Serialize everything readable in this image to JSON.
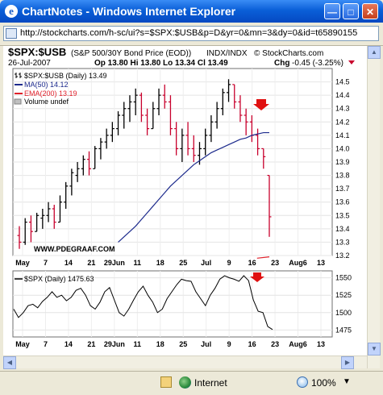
{
  "window": {
    "title": "ChartNotes - Windows Internet Explorer",
    "icon": "ie-page-icon",
    "buttons": {
      "minimize": "minimize-icon",
      "maximize": "maximize-icon",
      "close": "close-icon"
    }
  },
  "address": {
    "url": "http://stockcharts.com/h-sc/ui?s=$SPX:$USB&p=D&yr=0&mn=3&dy=0&id=t65890155"
  },
  "chart_header": {
    "symbol": "$SPX:$USB",
    "description": "(S&P 500/30Y Bond Price (EOD))",
    "exchange": "INDX/INDX",
    "copyright": "© StockCharts.com",
    "date": "26-Jul-2007",
    "ohlc_text": "Op 13.80  Hi 13.80  Lo 13.34  Cl 13.49",
    "change_label": "Chg",
    "change_value": "-0.45 (-3.25%)"
  },
  "legend": {
    "series_label": "$SPX:$USB (Daily) 13.49",
    "ma_label": "MA(50) 14.12",
    "ema_label": "EMA(200) 13.19",
    "volume_label": "Volume undef"
  },
  "watermark": "WWW.PDEGRAAF.COM",
  "lower_panel": {
    "label": "$SPX (Daily) 1475.63"
  },
  "status": {
    "zone": "Internet",
    "zoom": "100%"
  },
  "colors": {
    "up_bar": "#000000",
    "down_bar": "#c8002c",
    "ma50": "#1c2a8c",
    "ema200": "#e0202a",
    "arrow": "#e01010"
  },
  "chart_data": [
    {
      "type": "ohlc",
      "title": "$SPX:$USB",
      "x_tick_labels": [
        "May",
        "7",
        "14",
        "21",
        "29Jun",
        "11",
        "18",
        "25",
        "Jul",
        "9",
        "16",
        "23",
        "Aug6",
        "13"
      ],
      "ylim": [
        13.2,
        14.6
      ],
      "yticks": [
        13.2,
        13.3,
        13.4,
        13.5,
        13.6,
        13.7,
        13.8,
        13.9,
        14.0,
        14.1,
        14.2,
        14.3,
        14.4,
        14.5
      ],
      "bars": [
        {
          "h": 13.42,
          "l": 13.25,
          "o": 13.35,
          "c": 13.3
        },
        {
          "h": 13.48,
          "l": 13.28,
          "o": 13.3,
          "c": 13.45
        },
        {
          "h": 13.5,
          "l": 13.3,
          "o": 13.45,
          "c": 13.38
        },
        {
          "h": 13.52,
          "l": 13.38,
          "o": 13.38,
          "c": 13.5
        },
        {
          "h": 13.55,
          "l": 13.4,
          "o": 13.48,
          "c": 13.5
        },
        {
          "h": 13.6,
          "l": 13.45,
          "o": 13.5,
          "c": 13.55
        },
        {
          "h": 13.58,
          "l": 13.4,
          "o": 13.55,
          "c": 13.45
        },
        {
          "h": 13.65,
          "l": 13.45,
          "o": 13.45,
          "c": 13.6
        },
        {
          "h": 13.75,
          "l": 13.55,
          "o": 13.6,
          "c": 13.72
        },
        {
          "h": 13.85,
          "l": 13.65,
          "o": 13.72,
          "c": 13.82
        },
        {
          "h": 13.9,
          "l": 13.75,
          "o": 13.8,
          "c": 13.85
        },
        {
          "h": 13.95,
          "l": 13.8,
          "o": 13.85,
          "c": 13.92
        },
        {
          "h": 13.98,
          "l": 13.8,
          "o": 13.92,
          "c": 13.85
        },
        {
          "h": 14.02,
          "l": 13.85,
          "o": 13.85,
          "c": 14.0
        },
        {
          "h": 14.08,
          "l": 13.92,
          "o": 14.0,
          "c": 14.05
        },
        {
          "h": 14.15,
          "l": 14.0,
          "o": 14.05,
          "c": 14.1
        },
        {
          "h": 14.2,
          "l": 14.05,
          "o": 14.1,
          "c": 14.15
        },
        {
          "h": 14.28,
          "l": 14.1,
          "o": 14.15,
          "c": 14.25
        },
        {
          "h": 14.35,
          "l": 14.15,
          "o": 14.25,
          "c": 14.3
        },
        {
          "h": 14.4,
          "l": 14.2,
          "o": 14.3,
          "c": 14.35
        },
        {
          "h": 14.45,
          "l": 14.25,
          "o": 14.35,
          "c": 14.4
        },
        {
          "h": 14.42,
          "l": 14.2,
          "o": 14.4,
          "c": 14.25
        },
        {
          "h": 14.3,
          "l": 14.1,
          "o": 14.25,
          "c": 14.15
        },
        {
          "h": 14.35,
          "l": 14.15,
          "o": 14.15,
          "c": 14.3
        },
        {
          "h": 14.45,
          "l": 14.25,
          "o": 14.3,
          "c": 14.4
        },
        {
          "h": 14.48,
          "l": 14.3,
          "o": 14.4,
          "c": 14.35
        },
        {
          "h": 14.4,
          "l": 14.1,
          "o": 14.35,
          "c": 14.15
        },
        {
          "h": 14.2,
          "l": 13.95,
          "o": 14.15,
          "c": 14.0
        },
        {
          "h": 14.15,
          "l": 13.9,
          "o": 14.0,
          "c": 14.1
        },
        {
          "h": 14.2,
          "l": 13.95,
          "o": 14.1,
          "c": 14.0
        },
        {
          "h": 14.1,
          "l": 13.9,
          "o": 14.0,
          "c": 13.95
        },
        {
          "h": 14.05,
          "l": 13.88,
          "o": 13.95,
          "c": 14.0
        },
        {
          "h": 14.15,
          "l": 13.95,
          "o": 14.0,
          "c": 14.1
        },
        {
          "h": 14.25,
          "l": 14.05,
          "o": 14.1,
          "c": 14.2
        },
        {
          "h": 14.35,
          "l": 14.15,
          "o": 14.2,
          "c": 14.3
        },
        {
          "h": 14.45,
          "l": 14.25,
          "o": 14.3,
          "c": 14.42
        },
        {
          "h": 14.52,
          "l": 14.35,
          "o": 14.42,
          "c": 14.48
        },
        {
          "h": 14.48,
          "l": 14.3,
          "o": 14.48,
          "c": 14.35
        },
        {
          "h": 14.4,
          "l": 14.2,
          "o": 14.35,
          "c": 14.25
        },
        {
          "h": 14.3,
          "l": 14.1,
          "o": 14.25,
          "c": 14.2
        },
        {
          "h": 14.25,
          "l": 14.05,
          "o": 14.2,
          "c": 14.1
        },
        {
          "h": 14.15,
          "l": 13.95,
          "o": 14.1,
          "c": 14.0
        },
        {
          "h": 14.0,
          "l": 13.85,
          "o": 14.0,
          "c": 13.94
        },
        {
          "h": 13.8,
          "l": 13.34,
          "o": 13.8,
          "c": 13.49
        }
      ],
      "ma50": [
        13.3,
        13.34,
        13.38,
        13.42,
        13.47,
        13.52,
        13.57,
        13.62,
        13.67,
        13.72,
        13.76,
        13.8,
        13.84,
        13.88,
        13.91,
        13.94,
        13.97,
        13.99,
        14.01,
        14.03,
        14.05,
        14.07,
        14.08,
        14.1,
        14.11,
        14.12,
        14.12
      ],
      "ema200": [
        13.18,
        13.19
      ]
    },
    {
      "type": "line",
      "title": "$SPX (Daily)",
      "ylim": [
        1465,
        1560
      ],
      "yticks": [
        1475,
        1500,
        1525,
        1550
      ],
      "values": [
        1505,
        1493,
        1500,
        1510,
        1512,
        1507,
        1516,
        1522,
        1530,
        1522,
        1525,
        1517,
        1522,
        1532,
        1535,
        1525,
        1510,
        1505,
        1515,
        1530,
        1536,
        1518,
        1500,
        1495,
        1505,
        1518,
        1530,
        1538,
        1525,
        1515,
        1500,
        1505,
        1520,
        1530,
        1540,
        1548,
        1546,
        1545,
        1530,
        1520,
        1510,
        1525,
        1535,
        1548,
        1553,
        1550,
        1548,
        1545,
        1553,
        1546,
        1518,
        1502,
        1500,
        1480,
        1475.63
      ]
    }
  ]
}
